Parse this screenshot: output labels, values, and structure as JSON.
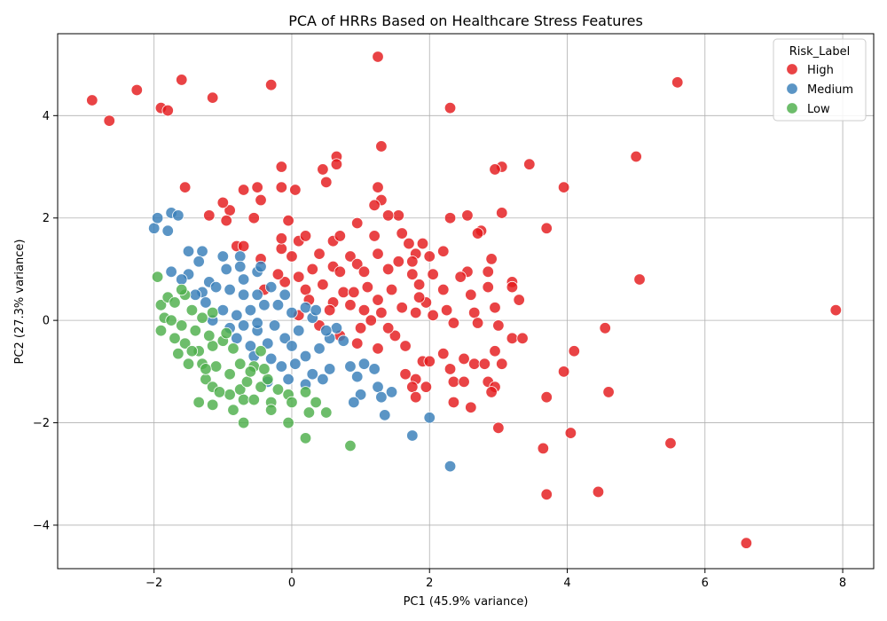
{
  "chart_data": {
    "type": "scatter",
    "title": "PCA of HRRs Based on Healthcare Stress Features",
    "xlabel": "PC1 (45.9% variance)",
    "ylabel": "PC2 (27.3% variance)",
    "xlim": [
      -3.4,
      8.45
    ],
    "ylim": [
      -4.85,
      5.6
    ],
    "xticks": [
      -2,
      0,
      2,
      4,
      6,
      8
    ],
    "yticks": [
      -4,
      -2,
      0,
      2,
      4
    ],
    "grid": true,
    "legend": {
      "title": "Risk_Label",
      "placement": "top-right"
    },
    "series": [
      {
        "name": "High",
        "color": "#e41a1c",
        "points": [
          [
            -2.9,
            4.3
          ],
          [
            -2.65,
            3.9
          ],
          [
            -2.25,
            4.5
          ],
          [
            -1.9,
            4.15
          ],
          [
            -1.8,
            4.1
          ],
          [
            -1.6,
            4.7
          ],
          [
            -1.15,
            4.35
          ],
          [
            -0.3,
            4.6
          ],
          [
            1.25,
            5.15
          ],
          [
            2.3,
            4.15
          ],
          [
            5.6,
            4.65
          ],
          [
            5.0,
            3.2
          ],
          [
            3.45,
            3.05
          ],
          [
            3.05,
            3.0
          ],
          [
            2.95,
            2.95
          ],
          [
            3.95,
            2.6
          ],
          [
            3.05,
            2.1
          ],
          [
            3.7,
            1.8
          ],
          [
            1.3,
            3.4
          ],
          [
            0.65,
            3.2
          ],
          [
            0.45,
            2.95
          ],
          [
            0.5,
            2.7
          ],
          [
            0.65,
            3.05
          ],
          [
            -0.15,
            3.0
          ],
          [
            -0.15,
            2.6
          ],
          [
            0.05,
            2.55
          ],
          [
            -0.5,
            2.6
          ],
          [
            -0.7,
            2.55
          ],
          [
            -1.55,
            2.6
          ],
          [
            -0.45,
            2.35
          ],
          [
            1.25,
            2.6
          ],
          [
            1.3,
            2.35
          ],
          [
            1.2,
            2.25
          ],
          [
            1.55,
            2.05
          ],
          [
            1.4,
            2.05
          ],
          [
            2.3,
            2.0
          ],
          [
            2.55,
            2.05
          ],
          [
            2.75,
            1.75
          ],
          [
            2.7,
            1.7
          ],
          [
            -1.2,
            2.05
          ],
          [
            -0.9,
            2.15
          ],
          [
            -1.0,
            2.3
          ],
          [
            -0.55,
            2.0
          ],
          [
            -0.05,
            1.95
          ],
          [
            -0.95,
            1.95
          ],
          [
            0.95,
            1.9
          ],
          [
            0.6,
            1.55
          ],
          [
            0.7,
            1.65
          ],
          [
            0.1,
            1.55
          ],
          [
            0.2,
            1.65
          ],
          [
            1.2,
            1.65
          ],
          [
            1.6,
            1.7
          ],
          [
            1.7,
            1.5
          ],
          [
            1.9,
            1.5
          ],
          [
            1.8,
            1.3
          ],
          [
            2.2,
            1.35
          ],
          [
            1.55,
            1.15
          ],
          [
            1.75,
            1.15
          ],
          [
            2.0,
            1.25
          ],
          [
            1.25,
            1.3
          ],
          [
            0.85,
            1.25
          ],
          [
            0.4,
            1.3
          ],
          [
            -0.15,
            1.4
          ],
          [
            -0.15,
            1.6
          ],
          [
            -0.8,
            1.45
          ],
          [
            -0.7,
            1.45
          ],
          [
            -0.45,
            1.2
          ],
          [
            0.0,
            1.25
          ],
          [
            0.3,
            1.0
          ],
          [
            0.6,
            1.05
          ],
          [
            0.95,
            1.1
          ],
          [
            1.05,
            0.95
          ],
          [
            1.4,
            1.0
          ],
          [
            1.75,
            0.9
          ],
          [
            2.05,
            0.9
          ],
          [
            2.55,
            0.95
          ],
          [
            2.85,
            0.95
          ],
          [
            2.9,
            1.2
          ],
          [
            2.45,
            0.85
          ],
          [
            3.2,
            0.75
          ],
          [
            3.2,
            0.65
          ],
          [
            2.85,
            0.65
          ],
          [
            2.6,
            0.5
          ],
          [
            2.2,
            0.6
          ],
          [
            1.95,
            0.35
          ],
          [
            1.85,
            0.7
          ],
          [
            1.45,
            0.6
          ],
          [
            1.1,
            0.65
          ],
          [
            0.75,
            0.55
          ],
          [
            0.45,
            0.7
          ],
          [
            0.2,
            0.6
          ],
          [
            -0.1,
            0.75
          ],
          [
            -0.4,
            0.6
          ],
          [
            -0.2,
            0.9
          ],
          [
            0.1,
            0.85
          ],
          [
            0.85,
            0.3
          ],
          [
            1.25,
            0.4
          ],
          [
            1.6,
            0.25
          ],
          [
            1.8,
            0.15
          ],
          [
            2.05,
            0.1
          ],
          [
            2.35,
            -0.05
          ],
          [
            2.65,
            0.15
          ],
          [
            2.95,
            0.25
          ],
          [
            3.3,
            0.4
          ],
          [
            2.7,
            -0.05
          ],
          [
            3.0,
            -0.1
          ],
          [
            2.95,
            -0.6
          ],
          [
            3.05,
            -0.85
          ],
          [
            3.2,
            -0.35
          ],
          [
            3.35,
            -0.35
          ],
          [
            2.5,
            -0.75
          ],
          [
            2.3,
            -0.95
          ],
          [
            2.65,
            -0.85
          ],
          [
            2.8,
            -0.85
          ],
          [
            2.2,
            -0.65
          ],
          [
            1.9,
            -0.8
          ],
          [
            2.0,
            -0.8
          ],
          [
            1.65,
            -1.05
          ],
          [
            1.8,
            -1.15
          ],
          [
            1.75,
            -1.3
          ],
          [
            1.95,
            -1.3
          ],
          [
            1.8,
            -1.5
          ],
          [
            2.35,
            -1.2
          ],
          [
            2.5,
            -1.2
          ],
          [
            2.6,
            -1.7
          ],
          [
            2.35,
            -1.6
          ],
          [
            2.85,
            -1.2
          ],
          [
            2.95,
            -1.3
          ],
          [
            2.9,
            -1.4
          ],
          [
            3.0,
            -2.1
          ],
          [
            3.65,
            -2.5
          ],
          [
            3.7,
            -1.5
          ],
          [
            3.7,
            -3.4
          ],
          [
            4.05,
            -2.2
          ],
          [
            3.95,
            -1.0
          ],
          [
            4.1,
            -0.6
          ],
          [
            4.55,
            -0.15
          ],
          [
            4.6,
            -1.4
          ],
          [
            4.45,
            -3.35
          ],
          [
            5.5,
            -2.4
          ],
          [
            6.6,
            -4.35
          ],
          [
            7.9,
            0.2
          ],
          [
            5.05,
            0.8
          ],
          [
            1.3,
            0.15
          ],
          [
            1.0,
            -0.15
          ],
          [
            0.7,
            -0.3
          ],
          [
            0.4,
            -0.1
          ],
          [
            0.1,
            0.1
          ],
          [
            0.6,
            0.35
          ],
          [
            0.9,
            0.55
          ],
          [
            1.5,
            -0.3
          ],
          [
            1.65,
            -0.5
          ],
          [
            1.25,
            -0.55
          ],
          [
            0.95,
            -0.45
          ],
          [
            1.4,
            -0.15
          ],
          [
            1.15,
            0.0
          ],
          [
            0.7,
            0.95
          ],
          [
            0.25,
            0.4
          ],
          [
            0.55,
            0.2
          ],
          [
            1.05,
            0.2
          ],
          [
            1.85,
            0.45
          ],
          [
            2.25,
            0.2
          ]
        ]
      },
      {
        "name": "Medium",
        "color": "#377eb8",
        "points": [
          [
            -2.0,
            1.8
          ],
          [
            -1.95,
            2.0
          ],
          [
            -1.75,
            2.1
          ],
          [
            -1.65,
            2.05
          ],
          [
            -1.8,
            1.75
          ],
          [
            -1.5,
            1.35
          ],
          [
            -1.3,
            1.35
          ],
          [
            -1.35,
            1.15
          ],
          [
            -1.5,
            0.9
          ],
          [
            -1.75,
            0.95
          ],
          [
            -1.6,
            0.8
          ],
          [
            -1.2,
            0.75
          ],
          [
            -1.0,
            1.25
          ],
          [
            -0.75,
            1.25
          ],
          [
            -0.75,
            1.05
          ],
          [
            -0.5,
            0.95
          ],
          [
            -0.45,
            1.05
          ],
          [
            -0.95,
            1.0
          ],
          [
            -1.3,
            0.55
          ],
          [
            -1.1,
            0.65
          ],
          [
            -0.9,
            0.6
          ],
          [
            -0.7,
            0.5
          ],
          [
            -0.5,
            0.5
          ],
          [
            -0.3,
            0.65
          ],
          [
            -0.1,
            0.5
          ],
          [
            -0.2,
            0.3
          ],
          [
            -0.4,
            0.3
          ],
          [
            -0.6,
            0.2
          ],
          [
            -0.8,
            0.1
          ],
          [
            -1.0,
            0.2
          ],
          [
            -1.15,
            0.0
          ],
          [
            -0.9,
            -0.15
          ],
          [
            -0.7,
            -0.1
          ],
          [
            -0.5,
            -0.2
          ],
          [
            -0.25,
            -0.1
          ],
          [
            0.0,
            0.15
          ],
          [
            0.2,
            0.25
          ],
          [
            0.3,
            0.05
          ],
          [
            0.1,
            -0.2
          ],
          [
            -0.1,
            -0.35
          ],
          [
            -0.35,
            -0.45
          ],
          [
            -0.6,
            -0.5
          ],
          [
            -0.8,
            -0.35
          ],
          [
            -0.55,
            -0.7
          ],
          [
            -0.3,
            -0.75
          ],
          [
            -0.15,
            -0.9
          ],
          [
            0.05,
            -0.85
          ],
          [
            0.2,
            -0.7
          ],
          [
            0.4,
            -0.55
          ],
          [
            0.55,
            -0.35
          ],
          [
            0.65,
            -0.15
          ],
          [
            0.75,
            -0.4
          ],
          [
            0.55,
            -0.95
          ],
          [
            0.3,
            -1.05
          ],
          [
            0.2,
            -1.25
          ],
          [
            0.45,
            -1.15
          ],
          [
            0.85,
            -0.9
          ],
          [
            0.95,
            -1.1
          ],
          [
            1.05,
            -0.85
          ],
          [
            1.2,
            -0.95
          ],
          [
            1.25,
            -1.3
          ],
          [
            1.0,
            -1.45
          ],
          [
            1.3,
            -1.5
          ],
          [
            1.45,
            -1.4
          ],
          [
            1.35,
            -1.85
          ],
          [
            1.75,
            -2.25
          ],
          [
            2.0,
            -1.9
          ],
          [
            2.3,
            -2.85
          ],
          [
            0.9,
            -1.6
          ],
          [
            -0.05,
            -1.15
          ],
          [
            -0.35,
            -1.2
          ],
          [
            0.0,
            -0.5
          ],
          [
            0.5,
            -0.2
          ],
          [
            0.35,
            0.2
          ],
          [
            -0.5,
            -0.05
          ],
          [
            -1.25,
            0.35
          ],
          [
            -1.4,
            0.5
          ],
          [
            -0.7,
            0.8
          ]
        ]
      },
      {
        "name": "Low",
        "color": "#4daf4a",
        "points": [
          [
            -1.95,
            0.85
          ],
          [
            -1.9,
            0.3
          ],
          [
            -1.8,
            0.45
          ],
          [
            -1.7,
            0.35
          ],
          [
            -1.55,
            0.5
          ],
          [
            -1.85,
            0.05
          ],
          [
            -1.9,
            -0.2
          ],
          [
            -1.7,
            -0.35
          ],
          [
            -1.6,
            -0.1
          ],
          [
            -1.45,
            0.2
          ],
          [
            -1.4,
            -0.2
          ],
          [
            -1.55,
            -0.45
          ],
          [
            -1.35,
            -0.6
          ],
          [
            -1.5,
            -0.85
          ],
          [
            -1.3,
            -0.85
          ],
          [
            -1.15,
            -0.5
          ],
          [
            -1.2,
            -0.3
          ],
          [
            -1.0,
            -0.4
          ],
          [
            -1.1,
            -0.9
          ],
          [
            -1.25,
            -1.15
          ],
          [
            -1.15,
            -1.3
          ],
          [
            -0.9,
            -1.05
          ],
          [
            -0.9,
            -1.45
          ],
          [
            -0.75,
            -1.35
          ],
          [
            -0.65,
            -1.2
          ],
          [
            -0.7,
            -1.55
          ],
          [
            -0.85,
            -1.75
          ],
          [
            -0.7,
            -2.0
          ],
          [
            -0.55,
            -1.55
          ],
          [
            -0.45,
            -1.3
          ],
          [
            -0.35,
            -1.15
          ],
          [
            -0.2,
            -1.35
          ],
          [
            -0.3,
            -1.6
          ],
          [
            -0.3,
            -1.75
          ],
          [
            -0.05,
            -1.45
          ],
          [
            0.0,
            -1.6
          ],
          [
            -0.05,
            -2.0
          ],
          [
            0.2,
            -1.4
          ],
          [
            0.25,
            -1.8
          ],
          [
            0.35,
            -1.6
          ],
          [
            0.5,
            -1.8
          ],
          [
            0.2,
            -2.3
          ],
          [
            0.85,
            -2.45
          ],
          [
            -1.35,
            -1.6
          ],
          [
            -1.15,
            -1.65
          ],
          [
            -1.05,
            -1.4
          ],
          [
            -0.75,
            -0.85
          ],
          [
            -0.55,
            -0.9
          ],
          [
            -0.45,
            -0.6
          ],
          [
            -0.85,
            -0.55
          ],
          [
            -0.95,
            -0.25
          ],
          [
            -1.3,
            0.05
          ],
          [
            -1.65,
            -0.65
          ],
          [
            -1.75,
            0.0
          ],
          [
            -1.45,
            -0.6
          ],
          [
            -1.25,
            -0.95
          ],
          [
            -0.6,
            -1.0
          ],
          [
            -0.4,
            -0.95
          ],
          [
            -1.6,
            0.6
          ],
          [
            -1.15,
            0.15
          ]
        ]
      }
    ]
  }
}
